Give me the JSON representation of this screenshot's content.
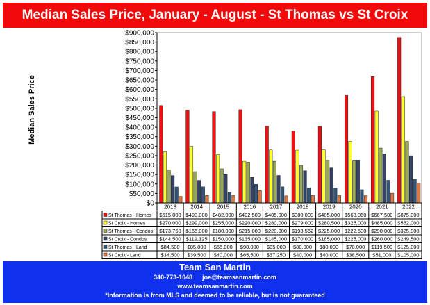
{
  "title": "Median Sales Price,  January - August - St Thomas vs St Croix",
  "footer": {
    "name": "Team San Martin",
    "phone": "340-773-1048",
    "email": "joe@teamsanmartin.com",
    "website": "www.teamsanmartin.com",
    "disclaimer": "*Information is from MLS and deemed to be reliable, but is not guaranteed"
  },
  "colors": {
    "title_bg": "#f20a0a",
    "footer_bg": "#1030f0",
    "series": [
      "#ee1111",
      "#ffff33",
      "#99aa55",
      "#334466",
      "#335577",
      "#dd7744"
    ]
  },
  "chart_data": {
    "type": "bar",
    "ylabel": "Median Sales Price",
    "xlabel": "",
    "ylim": [
      0,
      900000
    ],
    "y_ticks": [
      "$0",
      "$50,000",
      "$100,000",
      "$150,000",
      "$200,000",
      "$250,000",
      "$300,000",
      "$350,000",
      "$400,000",
      "$450,000",
      "$500,000",
      "$550,000",
      "$600,000",
      "$650,000",
      "$700,000",
      "$750,000",
      "$800,000",
      "$850,000",
      "$900,000"
    ],
    "categories": [
      "2013",
      "2014",
      "2015",
      "2016",
      "2017",
      "2018",
      "2019",
      "2020",
      "2021",
      "2022"
    ],
    "legend_position": "data-table-below",
    "series": [
      {
        "name": "St Thomas - Homes",
        "values": [
          515000,
          490000,
          482000,
          492500,
          405000,
          380000,
          405000,
          568060,
          667500,
          875000
        ],
        "labels": [
          "$515,000",
          "$490,000",
          "$482,000",
          "$492,500",
          "$405,000",
          "$380,000",
          "$405,000",
          "$568,060",
          "$667,500",
          "$875,000"
        ]
      },
      {
        "name": "St Croix - Homes",
        "values": [
          270000,
          299000,
          255000,
          220000,
          280000,
          279000,
          280500,
          325000,
          485000,
          562000
        ],
        "labels": [
          "$270,000",
          "$299,000",
          "$255,000",
          "$220,000",
          "$280,000",
          "$279,000",
          "$280,500",
          "$325,000",
          "$485,000",
          "$562,000"
        ]
      },
      {
        "name": "St Thomas - Condos",
        "values": [
          173750,
          165000,
          180000,
          215000,
          220000,
          198562,
          225000,
          222500,
          290000,
          325000
        ],
        "labels": [
          "$173,750",
          "$165,000",
          "$180,000",
          "$215,000",
          "$220,000",
          "$198,562",
          "$225,000",
          "$222,500",
          "$290,000",
          "$325,000"
        ]
      },
      {
        "name": "St Croix - Condos",
        "values": [
          144500,
          119125,
          150000,
          135000,
          145000,
          170000,
          185000,
          225000,
          260000,
          249500
        ],
        "labels": [
          "$144,500",
          "$119,125",
          "$150,000",
          "$135,000",
          "$145,000",
          "$170,000",
          "$185,000",
          "$225,000",
          "$260,000",
          "$249,500"
        ]
      },
      {
        "name": "St Thomas - Land",
        "values": [
          84500,
          85000,
          55000,
          98000,
          85000,
          80000,
          80000,
          70000,
          119500,
          125000
        ],
        "labels": [
          "$84,500",
          "$85,000",
          "$55,000",
          "$98,000",
          "$85,000",
          "$80,000",
          "$80,000",
          "$70,000",
          "$119,500",
          "$125,000"
        ]
      },
      {
        "name": "St Croix - Land",
        "values": [
          34500,
          39500,
          40000,
          65500,
          37250,
          40000,
          40000,
          38500,
          51000,
          105000
        ],
        "labels": [
          "$34,500",
          "$39,500",
          "$40,000",
          "$65,500",
          "$37,250",
          "$40,000",
          "$40,000",
          "$38,500",
          "$51,000",
          "$105,000"
        ]
      }
    ]
  }
}
